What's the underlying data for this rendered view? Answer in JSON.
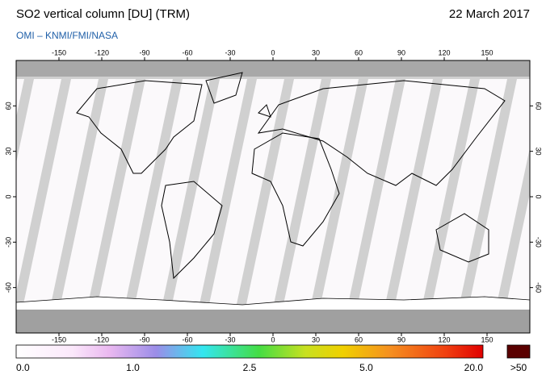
{
  "title": "SO2 vertical column [DU] (TRM)",
  "date": "22 March 2017",
  "subtitle": "OMI  –  KNMI/FMI/NASA",
  "map": {
    "lon_ticks": [
      -150,
      -120,
      -90,
      -60,
      -30,
      0,
      30,
      60,
      90,
      120,
      150
    ],
    "lat_ticks": [
      -60,
      -30,
      0,
      30,
      60
    ],
    "lonlim": [
      -180,
      180
    ],
    "latlim": [
      -90,
      90
    ]
  },
  "colorbar": {
    "ticks": [
      {
        "value": 0,
        "label": "0.0"
      },
      {
        "value": 1,
        "label": "1.0"
      },
      {
        "value": 2.5,
        "label": "2.5"
      },
      {
        "value": 5,
        "label": "5.0"
      },
      {
        "value": 20,
        "label": "20.0"
      }
    ],
    "overflow_label": ">50"
  }
}
